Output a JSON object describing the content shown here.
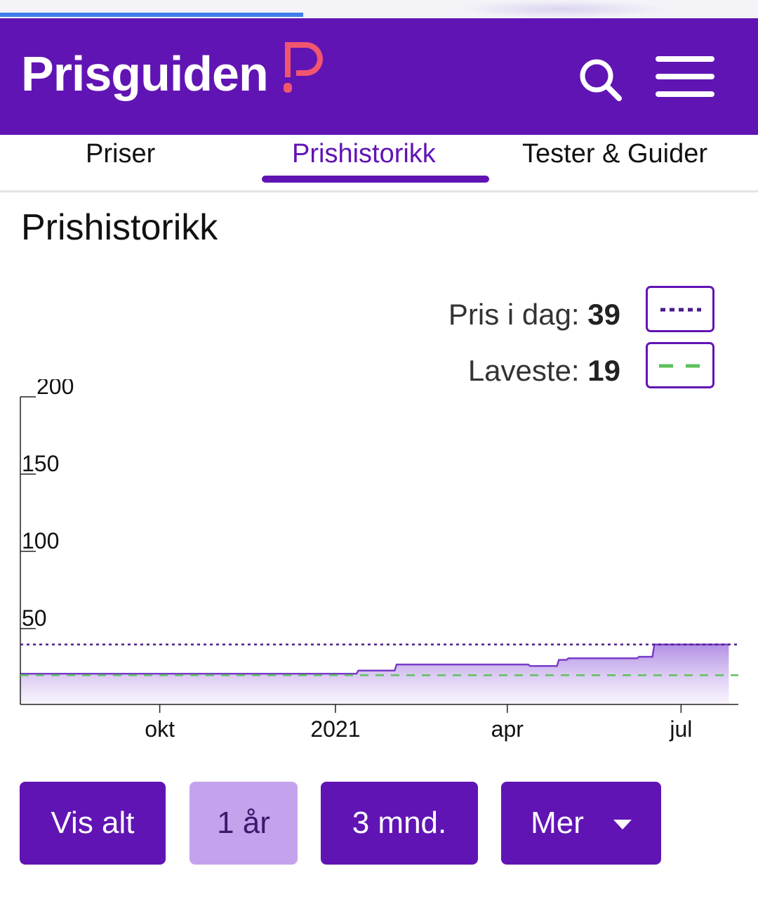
{
  "header": {
    "logo_text": "Prisguiden",
    "logo_icon": "p-logo-icon",
    "search_icon": "search-icon",
    "menu_icon": "hamburger-menu-icon",
    "brand_color": "#6114b4",
    "accent_color": "#f0566e"
  },
  "tabs": [
    {
      "label": "Priser",
      "active": false
    },
    {
      "label": "Prishistorikk",
      "active": true
    },
    {
      "label": "Tester & Guider",
      "active": false
    }
  ],
  "page_title": "Prishistorikk",
  "legend": {
    "today_label": "Pris i dag:",
    "today_value": "39",
    "lowest_label": "Laveste:",
    "lowest_value": "19",
    "today_line_color": "#4b1a8c",
    "lowest_line_color": "#5cc25c"
  },
  "chart_data": {
    "type": "area",
    "x_ticks": [
      "okt",
      "2021",
      "apr",
      "jul"
    ],
    "y_ticks": [
      "200",
      "150",
      "100",
      "50"
    ],
    "ylim": [
      0,
      200
    ],
    "x_start": "2020-07-20",
    "x_end": "2021-07-31",
    "series": [
      {
        "x": [
          "2020-07-20",
          "2021-01-12",
          "2021-01-13",
          "2021-02-01",
          "2021-02-02",
          "2021-04-12",
          "2021-04-13",
          "2021-04-27",
          "2021-04-28",
          "2021-05-02",
          "2021-05-03",
          "2021-06-08",
          "2021-06-09",
          "2021-06-16",
          "2021-06-17",
          "2021-07-26"
        ],
        "y": [
          20,
          20,
          22,
          22,
          26,
          26,
          25,
          25,
          29,
          29,
          30,
          30,
          31,
          31,
          39,
          39
        ]
      }
    ],
    "reference_lines": [
      {
        "label": "Pris i dag",
        "value": 39,
        "style": "dotted",
        "color": "#4b1a8c"
      },
      {
        "label": "Laveste",
        "value": 19,
        "style": "dashed",
        "color": "#5cc25c"
      }
    ],
    "fill_color": "#a57ce0",
    "line_color": "#7a3cc8"
  },
  "range_buttons": [
    {
      "label": "Vis alt",
      "selected": false
    },
    {
      "label": "1 år",
      "selected": true
    },
    {
      "label": "3 mnd.",
      "selected": false
    },
    {
      "label": "Mer",
      "selected": false,
      "icon": "caret-down-icon"
    }
  ]
}
